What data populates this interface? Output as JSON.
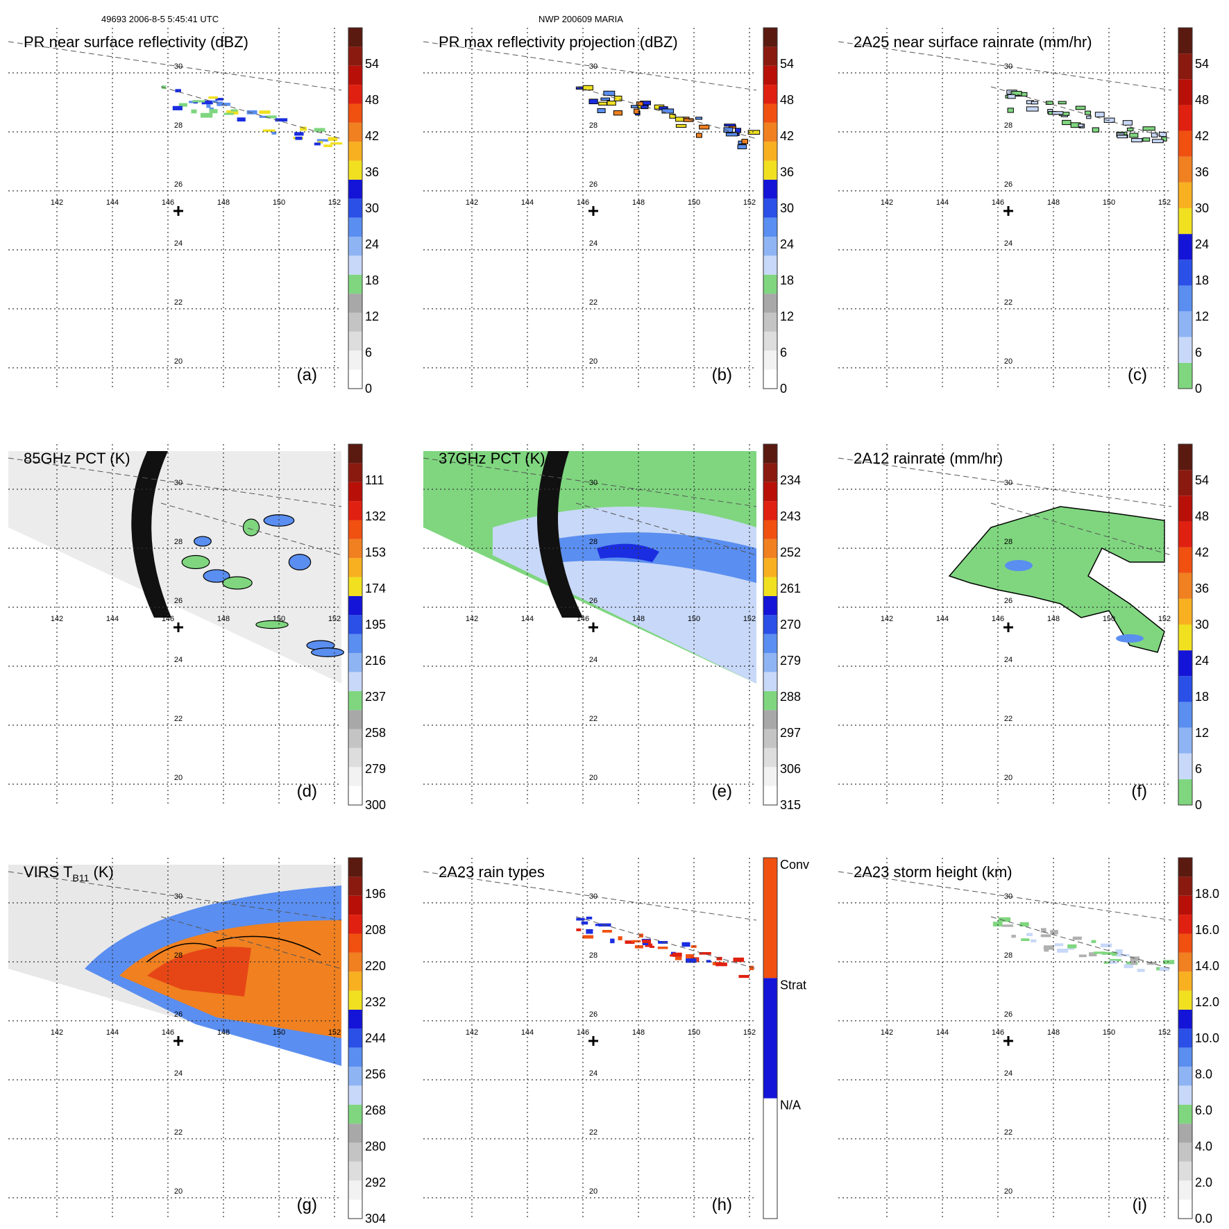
{
  "header": {
    "left": "49693 2006-8-5 5:45:41 UTC",
    "center": "NWP 200609 MARIA"
  },
  "colors": {
    "green": "#7fd67f",
    "lightblue": "#c8d8f8",
    "medblue": "#5a8ef0",
    "blue": "#1a2de0",
    "red": "#e02010",
    "orange": "#f08020",
    "yellow": "#f0e020",
    "gray": "#b0b0b0"
  },
  "chart_data": [
    {
      "id": "a",
      "type": "heatmap",
      "title": "PR near surface reflectivity (dBZ)",
      "label": "(a)",
      "ticks": [
        "0",
        "6",
        "12",
        "18",
        "24",
        "30",
        "36",
        "42",
        "48",
        "54"
      ],
      "colorbar": [
        "#ffffff",
        "#f2f2f2",
        "#dddddd",
        "#c4c4c4",
        "#a8a8a8",
        "#7fd67f",
        "#c8d8f8",
        "#8fb4f4",
        "#5a8ef0",
        "#2a50e8",
        "#1414d8",
        "#f0e020",
        "#f8b020",
        "#f08020",
        "#f05010",
        "#e02010",
        "#b81008",
        "#8a1a10",
        "#5a1a10"
      ]
    },
    {
      "id": "b",
      "type": "heatmap",
      "title": "PR max reflectivity projection (dBZ)",
      "label": "(b)",
      "ticks": [
        "0",
        "6",
        "12",
        "18",
        "24",
        "30",
        "36",
        "42",
        "48",
        "54"
      ],
      "colorbar": [
        "#ffffff",
        "#f2f2f2",
        "#dddddd",
        "#c4c4c4",
        "#a8a8a8",
        "#7fd67f",
        "#c8d8f8",
        "#8fb4f4",
        "#5a8ef0",
        "#2a50e8",
        "#1414d8",
        "#f0e020",
        "#f8b020",
        "#f08020",
        "#f05010",
        "#e02010",
        "#b81008",
        "#8a1a10",
        "#5a1a10"
      ]
    },
    {
      "id": "c",
      "type": "heatmap",
      "title": "2A25 near surface rainrate (mm/hr)",
      "label": "(c)",
      "ticks": [
        "0",
        "6",
        "12",
        "18",
        "24",
        "30",
        "36",
        "42",
        "48",
        "54"
      ],
      "colorbar": [
        "#7fd67f",
        "#c8d8f8",
        "#8fb4f4",
        "#5a8ef0",
        "#2a50e8",
        "#1414d8",
        "#f0e020",
        "#f8b020",
        "#f08020",
        "#f05010",
        "#e02010",
        "#b81008",
        "#8a1a10",
        "#5a1a10"
      ]
    },
    {
      "id": "d",
      "type": "heatmap",
      "title": "85GHz PCT (K)",
      "label": "(d)",
      "ticks": [
        "300",
        "279",
        "258",
        "237",
        "216",
        "195",
        "174",
        "153",
        "132",
        "111"
      ],
      "colorbar": [
        "#ffffff",
        "#f2f2f2",
        "#dddddd",
        "#c4c4c4",
        "#a8a8a8",
        "#7fd67f",
        "#c8d8f8",
        "#8fb4f4",
        "#5a8ef0",
        "#2a50e8",
        "#1414d8",
        "#f0e020",
        "#f8b020",
        "#f08020",
        "#f05010",
        "#e02010",
        "#b81008",
        "#8a1a10",
        "#5a1a10"
      ]
    },
    {
      "id": "e",
      "type": "heatmap",
      "title": "37GHz PCT (K)",
      "label": "(e)",
      "ticks": [
        "315",
        "306",
        "297",
        "288",
        "279",
        "270",
        "261",
        "252",
        "243",
        "234"
      ],
      "colorbar": [
        "#ffffff",
        "#f2f2f2",
        "#dddddd",
        "#c4c4c4",
        "#a8a8a8",
        "#7fd67f",
        "#c8d8f8",
        "#8fb4f4",
        "#5a8ef0",
        "#2a50e8",
        "#1414d8",
        "#f0e020",
        "#f8b020",
        "#f08020",
        "#f05010",
        "#e02010",
        "#b81008",
        "#8a1a10",
        "#5a1a10"
      ]
    },
    {
      "id": "f",
      "type": "heatmap",
      "title": "2A12 rainrate (mm/hr)",
      "label": "(f)",
      "ticks": [
        "0",
        "6",
        "12",
        "18",
        "24",
        "30",
        "36",
        "42",
        "48",
        "54"
      ],
      "colorbar": [
        "#7fd67f",
        "#c8d8f8",
        "#8fb4f4",
        "#5a8ef0",
        "#2a50e8",
        "#1414d8",
        "#f0e020",
        "#f8b020",
        "#f08020",
        "#f05010",
        "#e02010",
        "#b81008",
        "#8a1a10",
        "#5a1a10"
      ]
    },
    {
      "id": "g",
      "type": "heatmap",
      "title": "VIRS T",
      "title_sub": "B11",
      "title_tail": " (K)",
      "label": "(g)",
      "ticks": [
        "304",
        "292",
        "280",
        "268",
        "256",
        "244",
        "232",
        "220",
        "208",
        "196"
      ],
      "colorbar": [
        "#ffffff",
        "#f2f2f2",
        "#dddddd",
        "#c4c4c4",
        "#a8a8a8",
        "#7fd67f",
        "#c8d8f8",
        "#8fb4f4",
        "#5a8ef0",
        "#2a50e8",
        "#1414d8",
        "#f0e020",
        "#f8b020",
        "#f08020",
        "#f05010",
        "#e02010",
        "#b81008",
        "#8a1a10",
        "#5a1a10"
      ]
    },
    {
      "id": "h",
      "type": "heatmap",
      "title": "2A23 rain types",
      "label": "(h)",
      "ticks": [
        "N/A",
        "Strat",
        "Conv"
      ],
      "colorbar": [
        "#ffffff",
        "#1414d8",
        "#f05010"
      ]
    },
    {
      "id": "i",
      "type": "heatmap",
      "title": "2A23 storm height (km)",
      "label": "(i)",
      "ticks": [
        "0.0",
        "2.0",
        "4.0",
        "6.0",
        "8.0",
        "10.0",
        "12.0",
        "14.0",
        "16.0",
        "18.0"
      ],
      "colorbar": [
        "#ffffff",
        "#f2f2f2",
        "#dddddd",
        "#c4c4c4",
        "#a8a8a8",
        "#7fd67f",
        "#c8d8f8",
        "#8fb4f4",
        "#5a8ef0",
        "#2a50e8",
        "#1414d8",
        "#f0e020",
        "#f8b020",
        "#f08020",
        "#f05010",
        "#e02010",
        "#b81008",
        "#8a1a10",
        "#5a1a10"
      ]
    }
  ],
  "axes": {
    "lon_labels": [
      "142",
      "144",
      "146",
      "148",
      "150",
      "152"
    ],
    "lat_labels": [
      "30",
      "28",
      "26",
      "24",
      "22",
      "20"
    ]
  }
}
